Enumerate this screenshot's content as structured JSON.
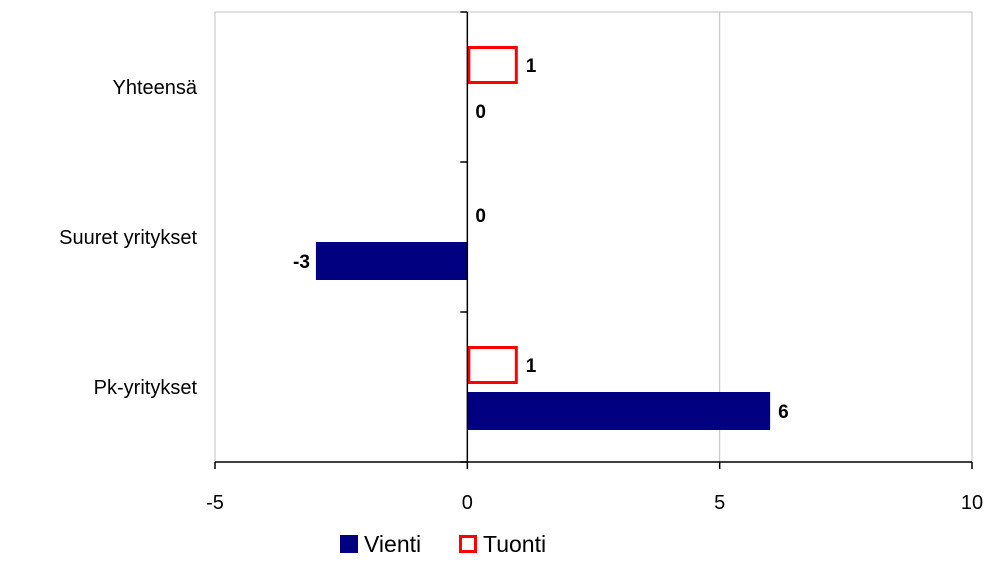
{
  "chart_data": {
    "type": "bar",
    "orientation": "horizontal",
    "title": "",
    "xlabel": "",
    "ylabel": "",
    "categories": [
      "Pk-yritykset",
      "Suuret yritykset",
      "Yhteensä"
    ],
    "series": [
      {
        "name": "Vienti",
        "values": [
          6,
          -3,
          0
        ],
        "labels": [
          "6",
          "-3",
          "0"
        ],
        "color": "#000080",
        "style": "filled"
      },
      {
        "name": "Tuonti",
        "values": [
          1,
          0,
          1
        ],
        "labels": [
          "1",
          "0",
          "1"
        ],
        "color": "#FF0000",
        "style": "outline"
      }
    ],
    "xlim": [
      -5,
      10
    ],
    "xticks": [
      "-5",
      "0",
      "5",
      "10"
    ],
    "grid": true,
    "legend": "bottom"
  }
}
